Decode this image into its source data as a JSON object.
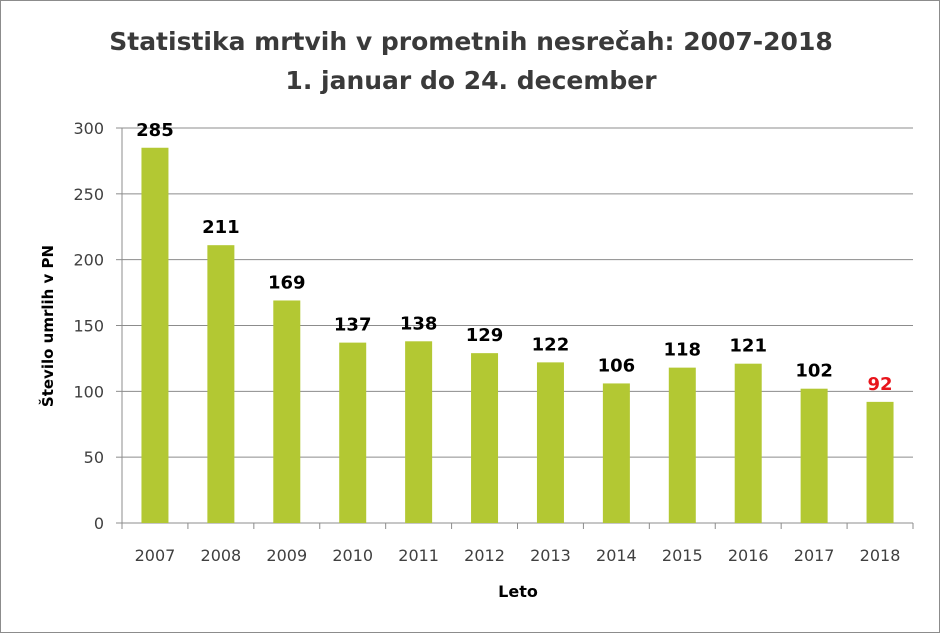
{
  "chart_data": {
    "type": "bar",
    "title": "Statistika mrtvih v prometnih nesrečah: 2007-2018",
    "subtitle": "1. januar do 24. december",
    "xlabel": "Leto",
    "ylabel": "Število umrlih v PN",
    "categories": [
      "2007",
      "2008",
      "2009",
      "2010",
      "2011",
      "2012",
      "2013",
      "2014",
      "2015",
      "2016",
      "2017",
      "2018"
    ],
    "values": [
      285,
      211,
      169,
      137,
      138,
      129,
      122,
      106,
      118,
      121,
      102,
      92
    ],
    "ylim": [
      0,
      300
    ],
    "yticks": [
      0,
      50,
      100,
      150,
      200,
      250,
      300
    ],
    "grid": true,
    "legend": "none",
    "data_labels": true,
    "colors": {
      "bar": "#b3c833",
      "label": "#000000",
      "highlight_label": "#e8141b",
      "grid": "#8c8c8c"
    },
    "highlight_index": 11
  }
}
